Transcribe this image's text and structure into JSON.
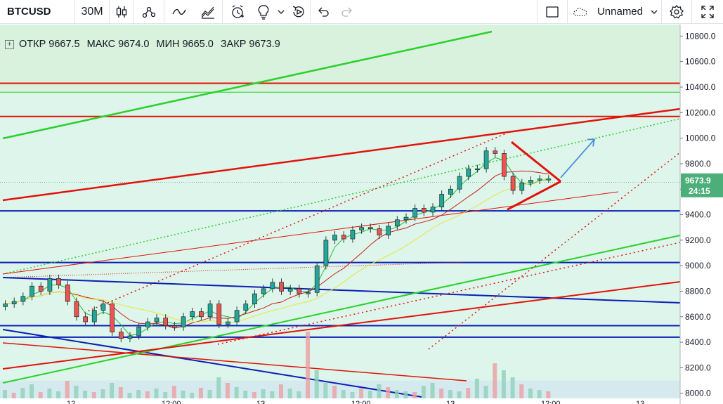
{
  "toolbar": {
    "symbol": "BTCUSD",
    "interval": "30M",
    "layout_name": "Unnamed",
    "icons": [
      "candles-icon",
      "indicators-icon",
      "line-tool-icon",
      "compare-icon",
      "alert-icon",
      "ideas-icon",
      "replay-icon",
      "undo-icon",
      "redo-icon",
      "fullscreen-layout-icon",
      "cloud-icon",
      "settings-icon",
      "fullscreen-icon"
    ]
  },
  "legend": {
    "open_label": "ОТКР",
    "open": "9667.5",
    "high_label": "МАКС",
    "high": "9674.0",
    "low_label": "МИН",
    "low": "9665.0",
    "close_label": "ЗАКР",
    "close": "9673.9"
  },
  "price_axis": {
    "ticks": [
      "10800.0",
      "10600.0",
      "10400.0",
      "10200.0",
      "10000.0",
      "9800.0",
      "9600.0",
      "9400.0",
      "9200.0",
      "9000.0",
      "8800.0",
      "8600.0",
      "8400.0",
      "8200.0",
      "8000.0"
    ],
    "last_price": "9673.9",
    "countdown": "24:15"
  },
  "time_axis": {
    "ticks": [
      "12",
      "12:00",
      "13",
      "12:00",
      "13",
      "12:00",
      "13"
    ]
  },
  "colors": {
    "bg_zone_upper": "#d9f2dd",
    "bg_zone_lower": "#ddf5ea",
    "up_candle": "#26a69a",
    "down_candle": "#ef5350",
    "red_line": "#e3120b",
    "green_line": "#2bd12b",
    "blue_line": "#0a1fb5",
    "arrow": "#4a8de0"
  },
  "chart_data": {
    "type": "candlestick",
    "symbol": "BTCUSD",
    "interval": "30M",
    "ylim": [
      7960,
      10890
    ],
    "horizontal_levels": {
      "red": [
        10430,
        10170
      ],
      "green": [
        10360
      ],
      "blue": [
        9430,
        9025,
        8530,
        8440
      ]
    },
    "candles_close": [
      8700,
      8720,
      8760,
      8840,
      8800,
      8900,
      8850,
      8720,
      8600,
      8560,
      8650,
      8700,
      8480,
      8430,
      8450,
      8520,
      8560,
      8590,
      8530,
      8520,
      8600,
      8640,
      8600,
      8700,
      8540,
      8560,
      8650,
      8700,
      8780,
      8820,
      8870,
      8800,
      8820,
      8780,
      8790,
      9000,
      9200,
      9240,
      9210,
      9280,
      9300,
      9290,
      9240,
      9310,
      9360,
      9380,
      9450,
      9420,
      9460,
      9560,
      9600,
      9700,
      9760,
      9760,
      9900,
      9880,
      9700,
      9590,
      9650,
      9670,
      9680,
      9680
    ],
    "triangle": {
      "apex": 9660,
      "top": 9970,
      "bottom": 9440
    }
  }
}
